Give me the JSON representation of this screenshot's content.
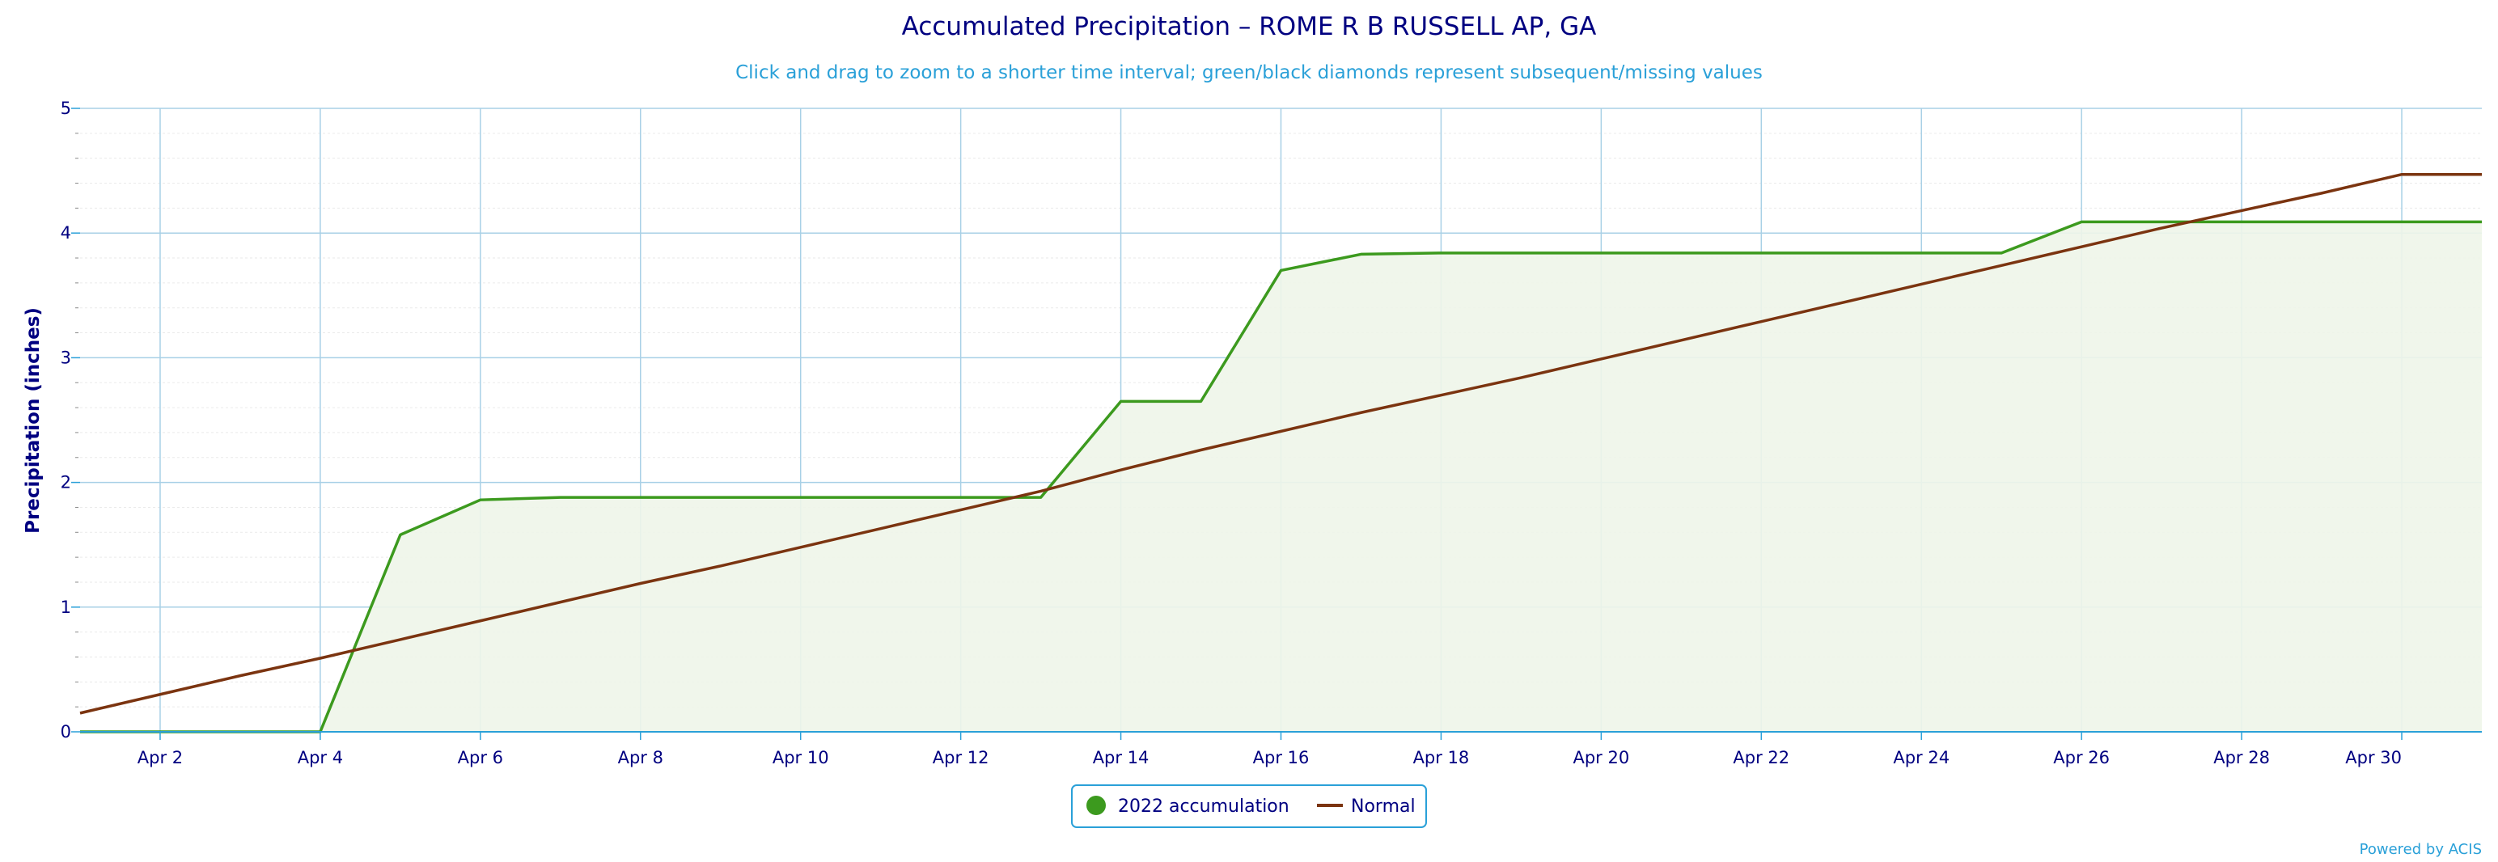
{
  "chart_data": {
    "type": "line",
    "title": "Accumulated Precipitation – ROME R B RUSSELL AP, GA",
    "subtitle": "Click and drag to zoom to a shorter time interval; green/black diamonds represent subsequent/missing values",
    "xlabel": "",
    "ylabel": "Precipitation (inches)",
    "xlim": [
      1,
      31
    ],
    "ylim": [
      0,
      5
    ],
    "x_ticks": [
      {
        "value": 2,
        "label": "Apr 2"
      },
      {
        "value": 4,
        "label": "Apr 4"
      },
      {
        "value": 6,
        "label": "Apr 6"
      },
      {
        "value": 8,
        "label": "Apr 8"
      },
      {
        "value": 10,
        "label": "Apr 10"
      },
      {
        "value": 12,
        "label": "Apr 12"
      },
      {
        "value": 14,
        "label": "Apr 14"
      },
      {
        "value": 16,
        "label": "Apr 16"
      },
      {
        "value": 18,
        "label": "Apr 18"
      },
      {
        "value": 20,
        "label": "Apr 20"
      },
      {
        "value": 22,
        "label": "Apr 22"
      },
      {
        "value": 24,
        "label": "Apr 24"
      },
      {
        "value": 26,
        "label": "Apr 26"
      },
      {
        "value": 28,
        "label": "Apr 28"
      },
      {
        "value": 30,
        "label": "Apr 30"
      }
    ],
    "y_ticks": [
      0,
      1,
      2,
      3,
      4,
      5
    ],
    "grid": true,
    "legend_position": "bottom-center",
    "series": [
      {
        "name": "2022 accumulation",
        "color": "#3c9a1e",
        "fill": "#eef5e9",
        "x": [
          1,
          2,
          3,
          4,
          5,
          6,
          7,
          8,
          9,
          10,
          11,
          12,
          13,
          14,
          15,
          16,
          17,
          18,
          19,
          20,
          21,
          22,
          23,
          24,
          25,
          26,
          27,
          28,
          29,
          30,
          31
        ],
        "values": [
          0,
          0,
          0,
          0,
          1.58,
          1.86,
          1.88,
          1.88,
          1.88,
          1.88,
          1.88,
          1.88,
          1.88,
          2.65,
          2.65,
          3.7,
          3.83,
          3.84,
          3.84,
          3.84,
          3.84,
          3.84,
          3.84,
          3.84,
          3.84,
          4.09,
          4.09,
          4.09,
          4.09,
          4.09,
          4.09
        ]
      },
      {
        "name": "Normal",
        "color": "#7b3410",
        "x": [
          1,
          2,
          3,
          4,
          5,
          6,
          7,
          8,
          9,
          10,
          11,
          12,
          13,
          14,
          15,
          16,
          17,
          18,
          19,
          20,
          21,
          22,
          23,
          24,
          25,
          26,
          27,
          28,
          29,
          30,
          31
        ],
        "values": [
          0.15,
          0.3,
          0.45,
          0.59,
          0.74,
          0.89,
          1.04,
          1.19,
          1.33,
          1.48,
          1.63,
          1.78,
          1.93,
          2.1,
          2.26,
          2.41,
          2.56,
          2.7,
          2.84,
          2.99,
          3.14,
          3.29,
          3.44,
          3.59,
          3.74,
          3.89,
          4.04,
          4.18,
          4.32,
          4.47,
          4.47
        ]
      }
    ],
    "credit": "Powered by ACIS"
  }
}
